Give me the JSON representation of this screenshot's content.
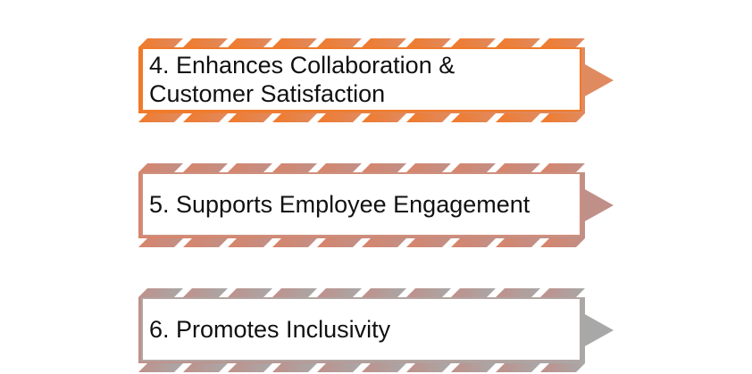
{
  "steps": [
    {
      "label": "4. Enhances Collaboration &\nCustomer Satisfaction",
      "color_left": "#f07a2a",
      "color_right": "#e08a60",
      "border": "#f07a2a"
    },
    {
      "label": "5. Supports Employee Engagement",
      "color_left": "#d8846a",
      "color_right": "#c09088",
      "border": "#cf8f7c"
    },
    {
      "label": "6. Promotes Inclusivity",
      "color_left": "#c0908a",
      "color_right": "#a8a8a8",
      "border": "#b3a5a2"
    }
  ]
}
